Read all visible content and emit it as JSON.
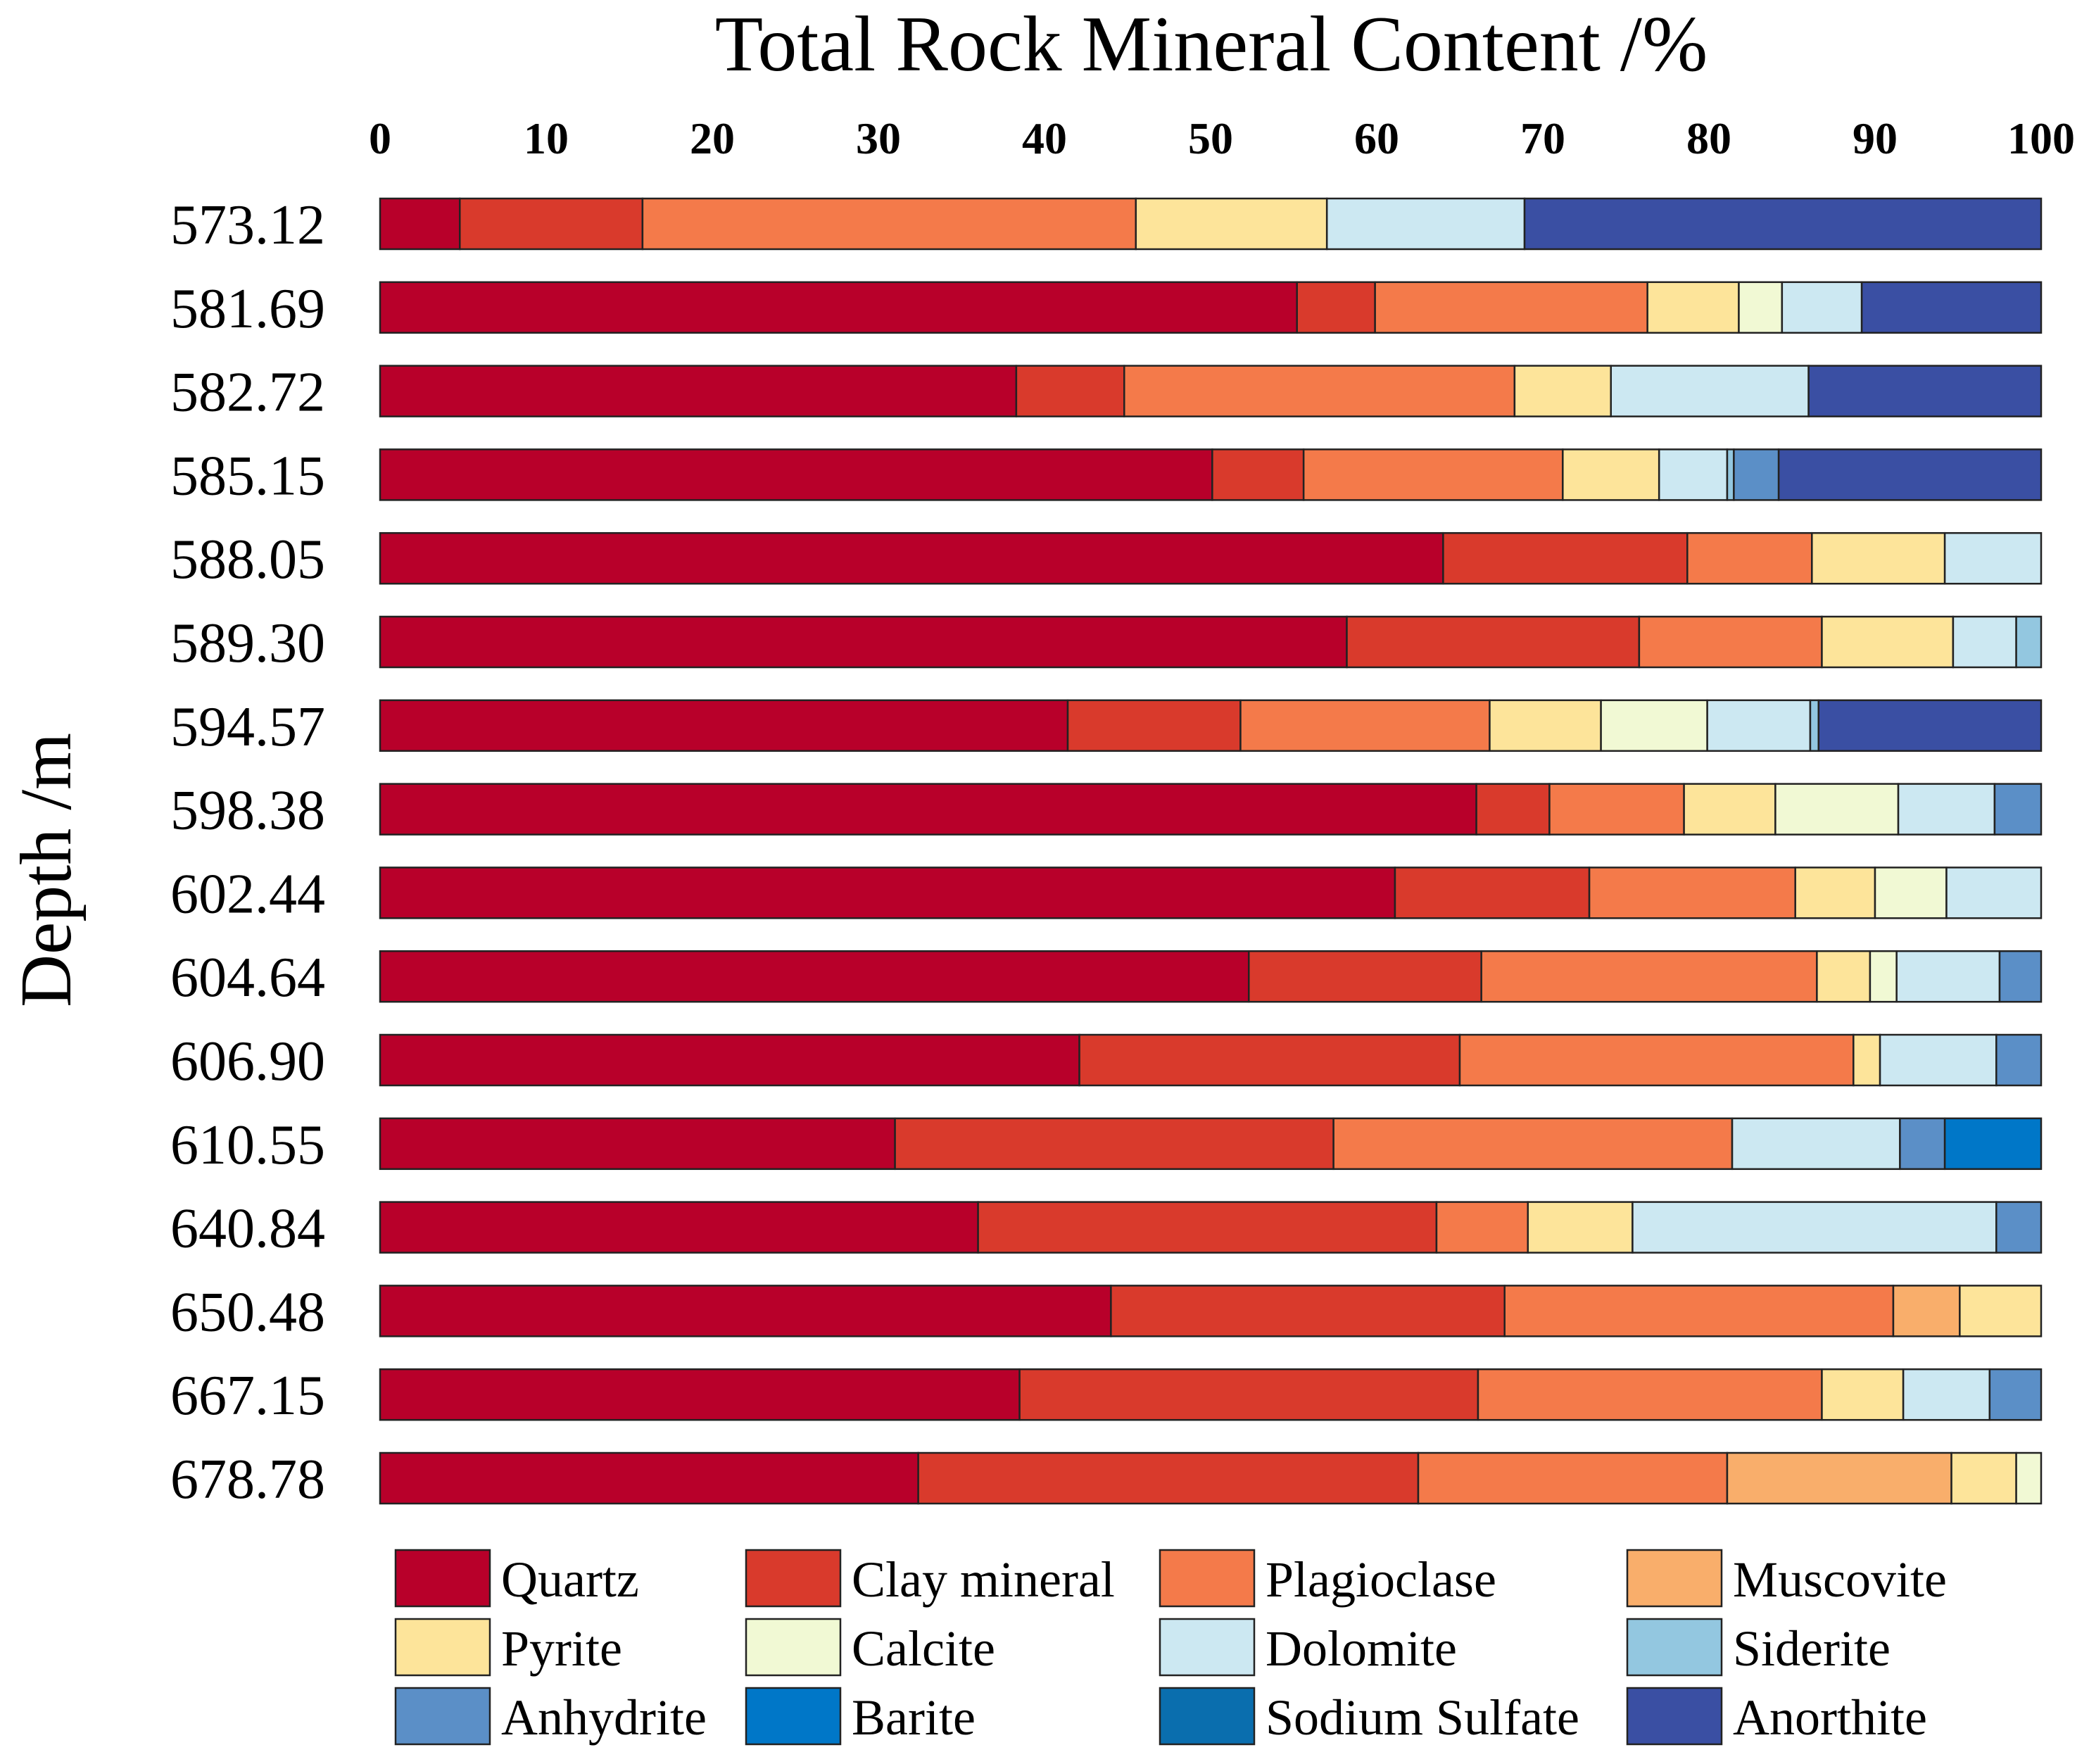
{
  "chart_data": {
    "type": "bar",
    "orientation": "horizontal",
    "stacked": true,
    "title": "Total Rock Mineral Content /%",
    "xlabel": "",
    "ylabel": "Depth /m",
    "xlim": [
      0,
      100
    ],
    "x_ticks": [
      "0",
      "10",
      "20",
      "30",
      "40",
      "50",
      "60",
      "70",
      "80",
      "90",
      "100"
    ],
    "x_axis_position": "top",
    "legend_position": "bottom",
    "categories": [
      "573.12",
      "581.69",
      "582.72",
      "585.15",
      "588.05",
      "589.30",
      "594.57",
      "598.38",
      "602.44",
      "604.64",
      "606.90",
      "610.55",
      "640.84",
      "650.48",
      "667.15",
      "678.78"
    ],
    "series": [
      {
        "name": "Quartz",
        "color": "#B8002A",
        "values": [
          4.8,
          55.2,
          38.3,
          50.1,
          64.0,
          58.2,
          41.4,
          66.0,
          61.1,
          52.3,
          42.1,
          31.0,
          36.0,
          44.0,
          38.5,
          32.4
        ]
      },
      {
        "name": "Clay mineral",
        "color": "#D93A2C",
        "values": [
          11.0,
          4.7,
          6.5,
          5.5,
          14.7,
          17.6,
          10.4,
          4.4,
          11.7,
          14.0,
          22.9,
          26.4,
          27.6,
          23.7,
          27.6,
          30.1
        ]
      },
      {
        "name": "Plagioclase",
        "color": "#F47A4A",
        "values": [
          29.7,
          16.4,
          23.5,
          15.6,
          7.5,
          11.0,
          15.0,
          8.1,
          12.4,
          20.2,
          23.7,
          24.0,
          5.5,
          23.4,
          20.7,
          18.6
        ]
      },
      {
        "name": "Muscovite",
        "color": "#F9AE6B",
        "values": [
          0,
          0,
          0,
          0,
          0,
          0,
          0,
          0,
          0,
          0,
          0,
          0,
          0,
          4.0,
          0,
          13.5
        ]
      },
      {
        "name": "Pyrite",
        "color": "#FDE49A",
        "values": [
          11.5,
          5.5,
          5.8,
          5.8,
          8.0,
          7.9,
          6.7,
          5.5,
          4.8,
          3.2,
          1.6,
          0,
          6.3,
          4.9,
          4.9,
          3.9
        ]
      },
      {
        "name": "Calcite",
        "color": "#F1F9D4",
        "values": [
          0,
          2.6,
          0,
          0,
          0,
          0,
          6.4,
          7.4,
          4.3,
          1.6,
          0,
          0,
          0,
          0,
          0,
          1.5
        ]
      },
      {
        "name": "Dolomite",
        "color": "#CCE8F2",
        "values": [
          11.9,
          4.8,
          11.9,
          4.1,
          5.8,
          3.8,
          6.2,
          5.8,
          5.7,
          6.2,
          7.0,
          10.1,
          21.9,
          0,
          5.2,
          0
        ]
      },
      {
        "name": "Siderite",
        "color": "#93C7E0",
        "values": [
          0,
          0,
          0,
          0.4,
          0,
          1.5,
          0.5,
          0,
          0,
          0,
          0,
          0,
          0,
          0,
          0,
          0
        ]
      },
      {
        "name": "Anhydrite",
        "color": "#5B8FC7",
        "values": [
          0,
          0,
          0,
          2.7,
          0,
          0,
          0,
          2.8,
          0,
          2.5,
          2.7,
          2.7,
          2.7,
          0,
          3.1,
          0
        ]
      },
      {
        "name": "Barite",
        "color": "#0077C8",
        "values": [
          0,
          0,
          0,
          0,
          0,
          0,
          0,
          0,
          0,
          0,
          0,
          5.8,
          0,
          0,
          0,
          0
        ]
      },
      {
        "name": "Sodium Sulfate",
        "color": "#0A6EAE",
        "values": [
          0,
          0,
          0,
          0,
          0,
          0,
          0,
          0,
          0,
          0,
          0,
          0,
          0,
          0,
          0,
          0
        ]
      },
      {
        "name": "Anorthite",
        "color": "#3A4FA3",
        "values": [
          31.1,
          10.8,
          14.0,
          15.8,
          0,
          0,
          13.4,
          0,
          0,
          0,
          0,
          0,
          0,
          0,
          0,
          0
        ]
      }
    ]
  }
}
